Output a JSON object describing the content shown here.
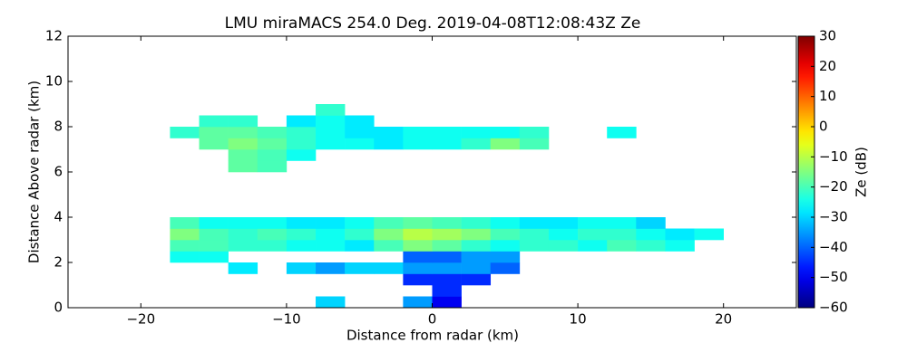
{
  "chart_data": {
    "type": "heatmap",
    "title": "LMU miraMACS 254.0 Deg. 2019-04-08T12:08:43Z  Ze",
    "xlabel": "Distance from radar (km)",
    "ylabel": "Distance Above radar  (km)",
    "colorbar_label": "Ze (dB)",
    "colormap": "jet",
    "clim": [
      -60,
      30
    ],
    "cticks": [
      {
        "value": -60,
        "label": "−60"
      },
      {
        "value": -50,
        "label": "−50"
      },
      {
        "value": -40,
        "label": "−40"
      },
      {
        "value": -30,
        "label": "−30"
      },
      {
        "value": -20,
        "label": "−20"
      },
      {
        "value": -10,
        "label": "−10"
      },
      0,
      10,
      20,
      30
    ],
    "xlim": [
      -25,
      25
    ],
    "xticks": [
      {
        "value": -20,
        "label": "−20"
      },
      {
        "value": -10,
        "label": "−10"
      },
      0,
      10,
      20
    ],
    "ylim": [
      0,
      12
    ],
    "yticks": [
      0,
      2,
      4,
      6,
      8,
      10,
      12
    ],
    "xbins": [
      -20,
      -18,
      -16,
      -14,
      -12,
      -10,
      -8,
      -6,
      -4,
      -2,
      0,
      2,
      4,
      6,
      8,
      10,
      12,
      14,
      16,
      18,
      20
    ],
    "ybins": [
      0,
      0.5,
      1,
      1.5,
      2,
      2.5,
      3,
      3.5,
      4,
      4.5,
      5,
      5.5,
      6,
      6.5,
      7,
      7.5,
      8,
      8.5,
      9
    ],
    "values": [
      [
        null,
        null,
        null,
        null,
        null,
        null,
        -30,
        null,
        null,
        -35,
        -50,
        null,
        null,
        null,
        null,
        null,
        null,
        null,
        null,
        null
      ],
      [
        null,
        null,
        null,
        null,
        null,
        null,
        null,
        null,
        null,
        null,
        -45,
        null,
        null,
        null,
        null,
        null,
        null,
        null,
        null,
        null
      ],
      [
        null,
        null,
        null,
        null,
        null,
        null,
        null,
        null,
        null,
        -45,
        -45,
        -45,
        null,
        null,
        null,
        null,
        null,
        null,
        null,
        null
      ],
      [
        null,
        null,
        null,
        -28,
        null,
        -30,
        -35,
        -30,
        -30,
        -35,
        -35,
        -35,
        -40,
        null,
        null,
        null,
        null,
        null,
        null,
        null
      ],
      [
        null,
        -25,
        -25,
        null,
        null,
        null,
        null,
        null,
        null,
        -40,
        -40,
        -35,
        -35,
        null,
        null,
        null,
        null,
        null,
        null,
        null
      ],
      [
        null,
        -20,
        -20,
        -22,
        -22,
        -25,
        -25,
        -28,
        -20,
        -15,
        -18,
        -22,
        -25,
        -22,
        -22,
        -25,
        -20,
        -22,
        -25,
        null
      ],
      [
        null,
        -15,
        -20,
        -22,
        -20,
        -22,
        -25,
        -22,
        -15,
        -10,
        -12,
        -15,
        -20,
        -22,
        -25,
        -22,
        -22,
        -25,
        -28,
        -25
      ],
      [
        null,
        -20,
        -25,
        -25,
        -25,
        -28,
        -28,
        -25,
        -20,
        -18,
        -20,
        -22,
        -25,
        -28,
        -28,
        -25,
        -25,
        -30,
        null,
        null
      ],
      [
        null,
        null,
        null,
        null,
        null,
        null,
        null,
        null,
        null,
        null,
        null,
        null,
        null,
        null,
        null,
        null,
        null,
        null,
        null,
        null
      ],
      [
        null,
        null,
        null,
        null,
        null,
        null,
        null,
        null,
        null,
        null,
        null,
        null,
        null,
        null,
        null,
        null,
        null,
        null,
        null,
        null
      ],
      [
        null,
        null,
        null,
        null,
        null,
        null,
        null,
        null,
        null,
        null,
        null,
        null,
        null,
        null,
        null,
        null,
        null,
        null,
        null,
        null
      ],
      [
        null,
        null,
        null,
        null,
        null,
        null,
        null,
        null,
        null,
        null,
        null,
        null,
        null,
        null,
        null,
        null,
        null,
        null,
        null,
        null
      ],
      [
        null,
        null,
        null,
        -18,
        -20,
        null,
        null,
        null,
        null,
        null,
        null,
        null,
        null,
        null,
        null,
        null,
        null,
        null,
        null,
        null
      ],
      [
        null,
        null,
        null,
        -18,
        -20,
        -25,
        null,
        null,
        null,
        null,
        null,
        null,
        null,
        null,
        null,
        null,
        null,
        null,
        null,
        null
      ],
      [
        null,
        null,
        -18,
        -15,
        -18,
        -22,
        -25,
        -25,
        -28,
        -25,
        -25,
        -22,
        -15,
        -20,
        null,
        null,
        null,
        null,
        null,
        null
      ],
      [
        null,
        -22,
        -18,
        -18,
        -20,
        -22,
        -25,
        -28,
        -28,
        -25,
        -25,
        -25,
        -25,
        -22,
        null,
        null,
        -25,
        null,
        null,
        null
      ],
      [
        null,
        null,
        -22,
        -22,
        null,
        -28,
        -25,
        -28,
        null,
        null,
        null,
        null,
        null,
        null,
        null,
        null,
        null,
        null,
        null,
        null
      ],
      [
        null,
        null,
        null,
        null,
        null,
        null,
        -22,
        null,
        null,
        null,
        null,
        null,
        null,
        null,
        null,
        null,
        null,
        null,
        null,
        null
      ]
    ]
  }
}
